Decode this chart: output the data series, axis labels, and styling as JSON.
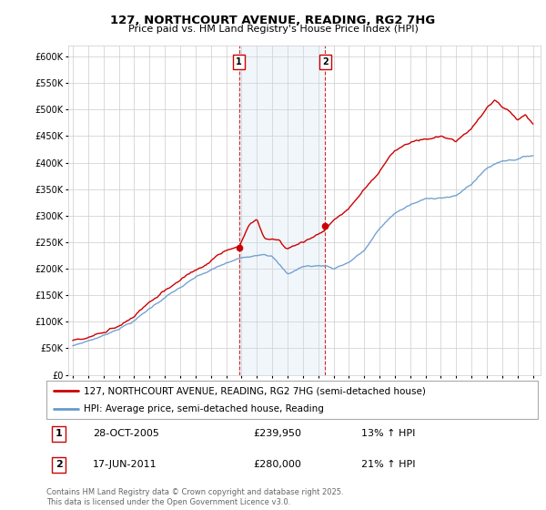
{
  "title": "127, NORTHCOURT AVENUE, READING, RG2 7HG",
  "subtitle": "Price paid vs. HM Land Registry's House Price Index (HPI)",
  "legend_line1": "127, NORTHCOURT AVENUE, READING, RG2 7HG (semi-detached house)",
  "legend_line2": "HPI: Average price, semi-detached house, Reading",
  "footnote": "Contains HM Land Registry data © Crown copyright and database right 2025.\nThis data is licensed under the Open Government Licence v3.0.",
  "marker1_date": "28-OCT-2005",
  "marker1_price": "£239,950",
  "marker1_hpi": "13% ↑ HPI",
  "marker2_date": "17-JUN-2011",
  "marker2_price": "£280,000",
  "marker2_hpi": "21% ↑ HPI",
  "price_color": "#cc0000",
  "hpi_color": "#6699cc",
  "marker_color": "#cc0000",
  "shaded_color": "#ddeeff",
  "ylim": [
    0,
    620000
  ],
  "ytick_step": 50000,
  "year_start": 1995,
  "year_end": 2025,
  "marker1_year": 2005.83,
  "marker2_year": 2011.46,
  "marker1_price_val": 239950,
  "marker2_price_val": 280000
}
